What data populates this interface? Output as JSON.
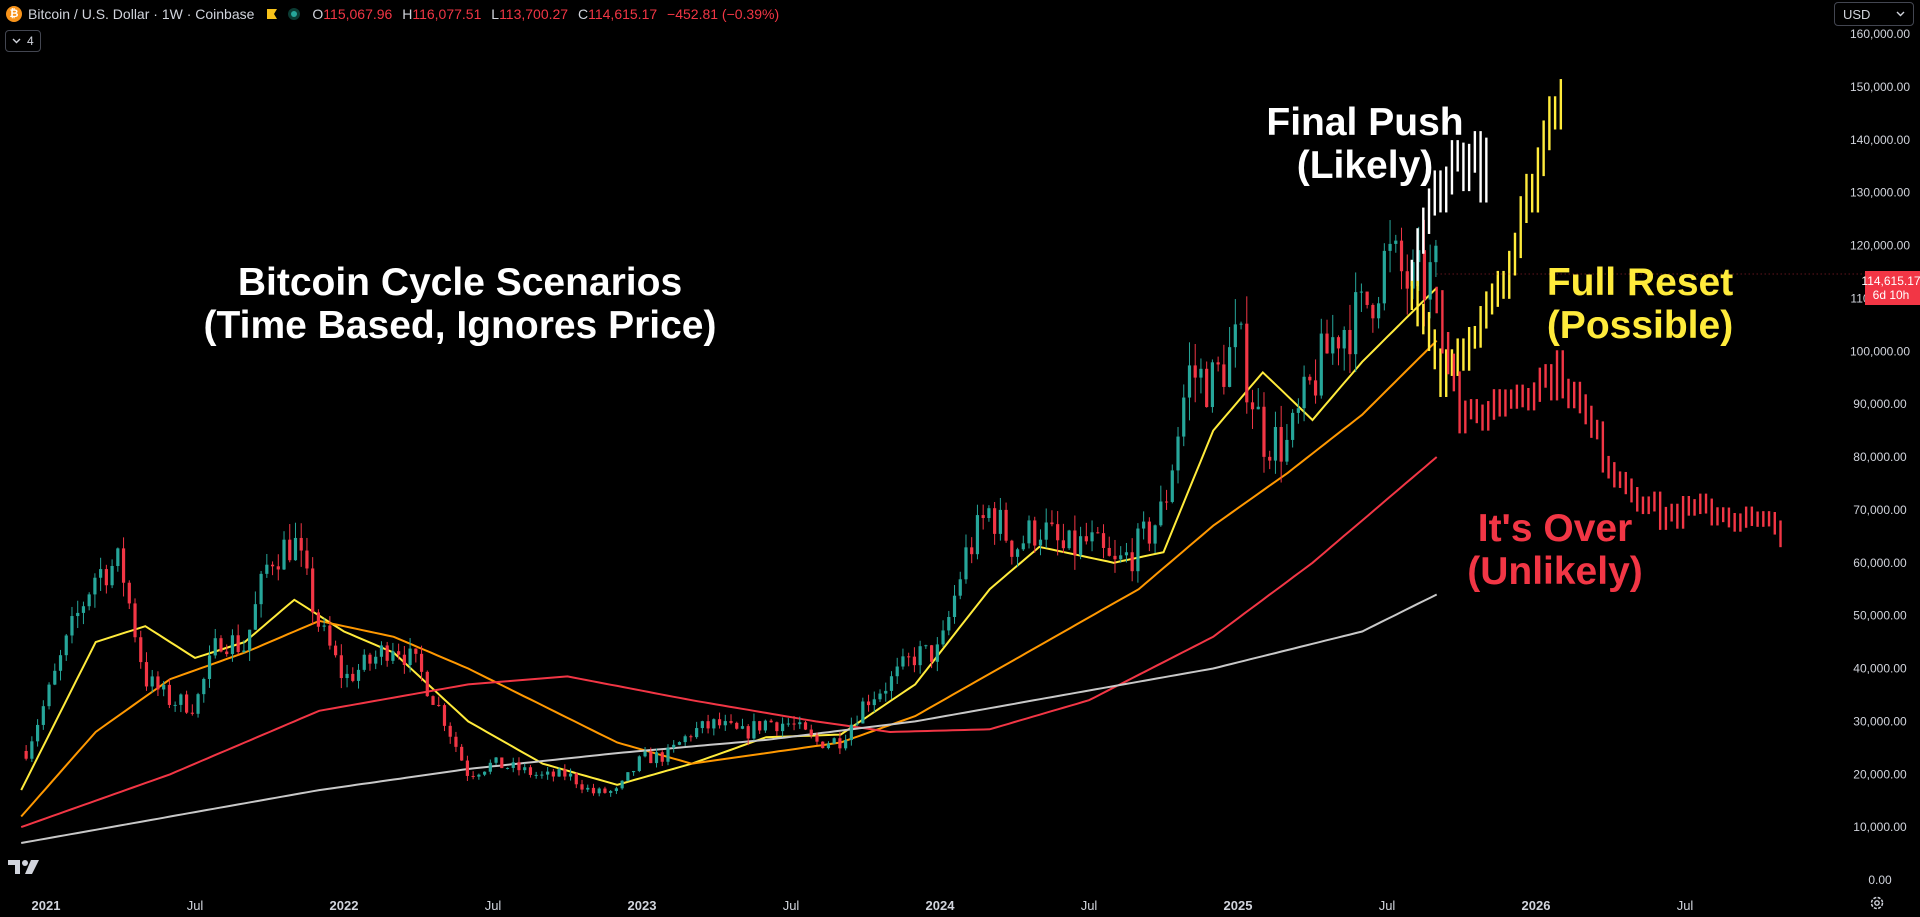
{
  "header": {
    "logo_glyph": "₿",
    "symbol": "Bitcoin / U.S. Dollar · 1W · Coinbase",
    "ohlc": {
      "o_label": "O",
      "o": "115,067.96",
      "h_label": "H",
      "h": "116,077.51",
      "l_label": "L",
      "l": "113,700.27",
      "c_label": "C",
      "c": "114,615.17",
      "change": "−452.81 (−0.39%)"
    },
    "indicator_count": "4"
  },
  "currency_selector": {
    "value": "USD"
  },
  "price_tag": {
    "price": "114,615.17",
    "countdown": "6d 10h"
  },
  "annotations": {
    "title_line1": "Bitcoin Cycle Scenarios",
    "title_line2": "(Time Based, Ignores Price)",
    "final_push_line1": "Final Push",
    "final_push_line2": "(Likely)",
    "full_reset_line1": "Full Reset",
    "full_reset_line2": "(Possible)",
    "its_over_line1": "It's Over",
    "its_over_line2": "(Unlikely)"
  },
  "colors": {
    "up": "#26a69a",
    "down": "#f23645",
    "ma_fast": "#ffeb3b",
    "ma_mid": "#ff9800",
    "ma_slow": "#f23645",
    "ma_long": "#c8c8c8",
    "scenario_white": "#ffffff",
    "scenario_yellow": "#ffeb3b",
    "scenario_red": "#f23645"
  },
  "chart_data": {
    "type": "candlestick",
    "x_axis_ticks": [
      "2021",
      "Jul",
      "2022",
      "Jul",
      "2023",
      "Jul",
      "2024",
      "Jul",
      "2025",
      "Jul",
      "2026",
      "Jul"
    ],
    "x_axis_tick_dates": [
      "2021-01",
      "2021-07",
      "2022-01",
      "2022-07",
      "2023-01",
      "2023-07",
      "2024-01",
      "2024-07",
      "2025-01",
      "2025-07",
      "2026-01",
      "2026-07"
    ],
    "y_axis_ticks": [
      "160,000.00",
      "150,000.00",
      "140,000.00",
      "130,000.00",
      "120,000.00",
      "110,000.00",
      "100,000.00",
      "90,000.00",
      "80,000.00",
      "70,000.00",
      "60,000.00",
      "50,000.00",
      "40,000.00",
      "30,000.00",
      "20,000.00",
      "10,000.00",
      "0.00"
    ],
    "ylim": [
      0,
      160000
    ],
    "xlim": [
      "2021-01",
      "2026-11"
    ],
    "price_path": [
      [
        "2020-12",
        22000
      ],
      [
        "2021-01",
        34000
      ],
      [
        "2021-02",
        47000
      ],
      [
        "2021-03",
        58000
      ],
      [
        "2021-04",
        60000
      ],
      [
        "2021-05",
        38000
      ],
      [
        "2021-06",
        34000
      ],
      [
        "2021-07",
        33000
      ],
      [
        "2021-08",
        46000
      ],
      [
        "2021-09",
        44000
      ],
      [
        "2021-10",
        61000
      ],
      [
        "2021-11",
        64000
      ],
      [
        "2021-12",
        48000
      ],
      [
        "2022-01",
        38000
      ],
      [
        "2022-02",
        41000
      ],
      [
        "2022-03",
        45000
      ],
      [
        "2022-04",
        40000
      ],
      [
        "2022-05",
        31000
      ],
      [
        "2022-06",
        20000
      ],
      [
        "2022-07",
        22000
      ],
      [
        "2022-08",
        21000
      ],
      [
        "2022-09",
        19500
      ],
      [
        "2022-10",
        20000
      ],
      [
        "2022-11",
        16500
      ],
      [
        "2022-12",
        16700
      ],
      [
        "2023-01",
        23000
      ],
      [
        "2023-02",
        23500
      ],
      [
        "2023-03",
        28000
      ],
      [
        "2023-04",
        29500
      ],
      [
        "2023-05",
        27500
      ],
      [
        "2023-06",
        30000
      ],
      [
        "2023-07",
        29500
      ],
      [
        "2023-08",
        26000
      ],
      [
        "2023-09",
        26500
      ],
      [
        "2023-10",
        34000
      ],
      [
        "2023-11",
        37500
      ],
      [
        "2023-12",
        42500
      ],
      [
        "2024-01",
        43000
      ],
      [
        "2024-02",
        61000
      ],
      [
        "2024-03",
        70000
      ],
      [
        "2024-04",
        63000
      ],
      [
        "2024-05",
        67000
      ],
      [
        "2024-06",
        62000
      ],
      [
        "2024-07",
        64000
      ],
      [
        "2024-08",
        59000
      ],
      [
        "2024-09",
        63000
      ],
      [
        "2024-10",
        70000
      ],
      [
        "2024-11",
        96000
      ],
      [
        "2024-12",
        94000
      ],
      [
        "2025-01",
        102000
      ],
      [
        "2025-02",
        84000
      ],
      [
        "2025-03",
        82000
      ],
      [
        "2025-04",
        94000
      ],
      [
        "2025-05",
        104000
      ],
      [
        "2025-06",
        107000
      ],
      [
        "2025-07",
        118000
      ],
      [
        "2025-08",
        112000
      ],
      [
        "2025-09",
        114615
      ]
    ],
    "moving_averages": {
      "fast": [
        [
          "2020-12",
          17000
        ],
        [
          "2021-03",
          45000
        ],
        [
          "2021-05",
          48000
        ],
        [
          "2021-07",
          42000
        ],
        [
          "2021-09",
          45000
        ],
        [
          "2021-11",
          53000
        ],
        [
          "2022-01",
          47000
        ],
        [
          "2022-03",
          43000
        ],
        [
          "2022-06",
          30000
        ],
        [
          "2022-09",
          22000
        ],
        [
          "2022-12",
          18000
        ],
        [
          "2023-03",
          22000
        ],
        [
          "2023-06",
          27000
        ],
        [
          "2023-09",
          27500
        ],
        [
          "2023-12",
          37000
        ],
        [
          "2024-03",
          55000
        ],
        [
          "2024-05",
          63000
        ],
        [
          "2024-08",
          60000
        ],
        [
          "2024-10",
          62000
        ],
        [
          "2024-12",
          85000
        ],
        [
          "2025-02",
          96000
        ],
        [
          "2025-04",
          87000
        ],
        [
          "2025-06",
          98000
        ],
        [
          "2025-09",
          112000
        ]
      ],
      "mid": [
        [
          "2020-12",
          12000
        ],
        [
          "2021-03",
          28000
        ],
        [
          "2021-06",
          38000
        ],
        [
          "2021-09",
          43000
        ],
        [
          "2021-12",
          49000
        ],
        [
          "2022-03",
          46000
        ],
        [
          "2022-06",
          40000
        ],
        [
          "2022-09",
          33000
        ],
        [
          "2022-12",
          26000
        ],
        [
          "2023-03",
          22000
        ],
        [
          "2023-06",
          24000
        ],
        [
          "2023-09",
          26000
        ],
        [
          "2023-12",
          31000
        ],
        [
          "2024-03",
          39000
        ],
        [
          "2024-06",
          47000
        ],
        [
          "2024-09",
          55000
        ],
        [
          "2024-12",
          67000
        ],
        [
          "2025-03",
          77000
        ],
        [
          "2025-06",
          88000
        ],
        [
          "2025-09",
          102000
        ]
      ],
      "slow": [
        [
          "2020-12",
          10000
        ],
        [
          "2021-06",
          20000
        ],
        [
          "2021-12",
          32000
        ],
        [
          "2022-06",
          37000
        ],
        [
          "2022-10",
          38500
        ],
        [
          "2023-03",
          34000
        ],
        [
          "2023-08",
          30000
        ],
        [
          "2023-11",
          28000
        ],
        [
          "2024-03",
          28500
        ],
        [
          "2024-07",
          34000
        ],
        [
          "2024-12",
          46000
        ],
        [
          "2025-04",
          60000
        ],
        [
          "2025-09",
          80000
        ]
      ],
      "long": [
        [
          "2020-12",
          7000
        ],
        [
          "2021-06",
          12000
        ],
        [
          "2021-12",
          17000
        ],
        [
          "2022-06",
          21000
        ],
        [
          "2022-12",
          24000
        ],
        [
          "2023-06",
          26500
        ],
        [
          "2023-12",
          30000
        ],
        [
          "2024-06",
          35000
        ],
        [
          "2024-12",
          40000
        ],
        [
          "2025-06",
          47000
        ],
        [
          "2025-09",
          54000
        ]
      ]
    },
    "scenarios": [
      {
        "label": "Final Push (Likely)",
        "path": [
          [
            "2025-08",
            115000
          ],
          [
            "2025-09",
            132000
          ],
          [
            "2025-10",
            137000
          ],
          [
            "2025-11",
            134000
          ]
        ]
      },
      {
        "label": "Full Reset (Possible)",
        "path": [
          [
            "2025-08",
            110000
          ],
          [
            "2025-09",
            95000
          ],
          [
            "2025-10",
            100000
          ],
          [
            "2025-11",
            110000
          ],
          [
            "2025-12",
            118000
          ],
          [
            "2026-01",
            135000
          ],
          [
            "2026-02",
            152000
          ]
        ]
      },
      {
        "label": "It's Over (Unlikely)",
        "path": [
          [
            "2025-09",
            110000
          ],
          [
            "2025-10",
            86000
          ],
          [
            "2025-12",
            92000
          ],
          [
            "2026-02",
            96000
          ],
          [
            "2026-04",
            78000
          ],
          [
            "2026-06",
            69000
          ],
          [
            "2026-08",
            70000
          ],
          [
            "2026-11",
            66000
          ]
        ]
      }
    ],
    "last_price": 114615.17
  }
}
